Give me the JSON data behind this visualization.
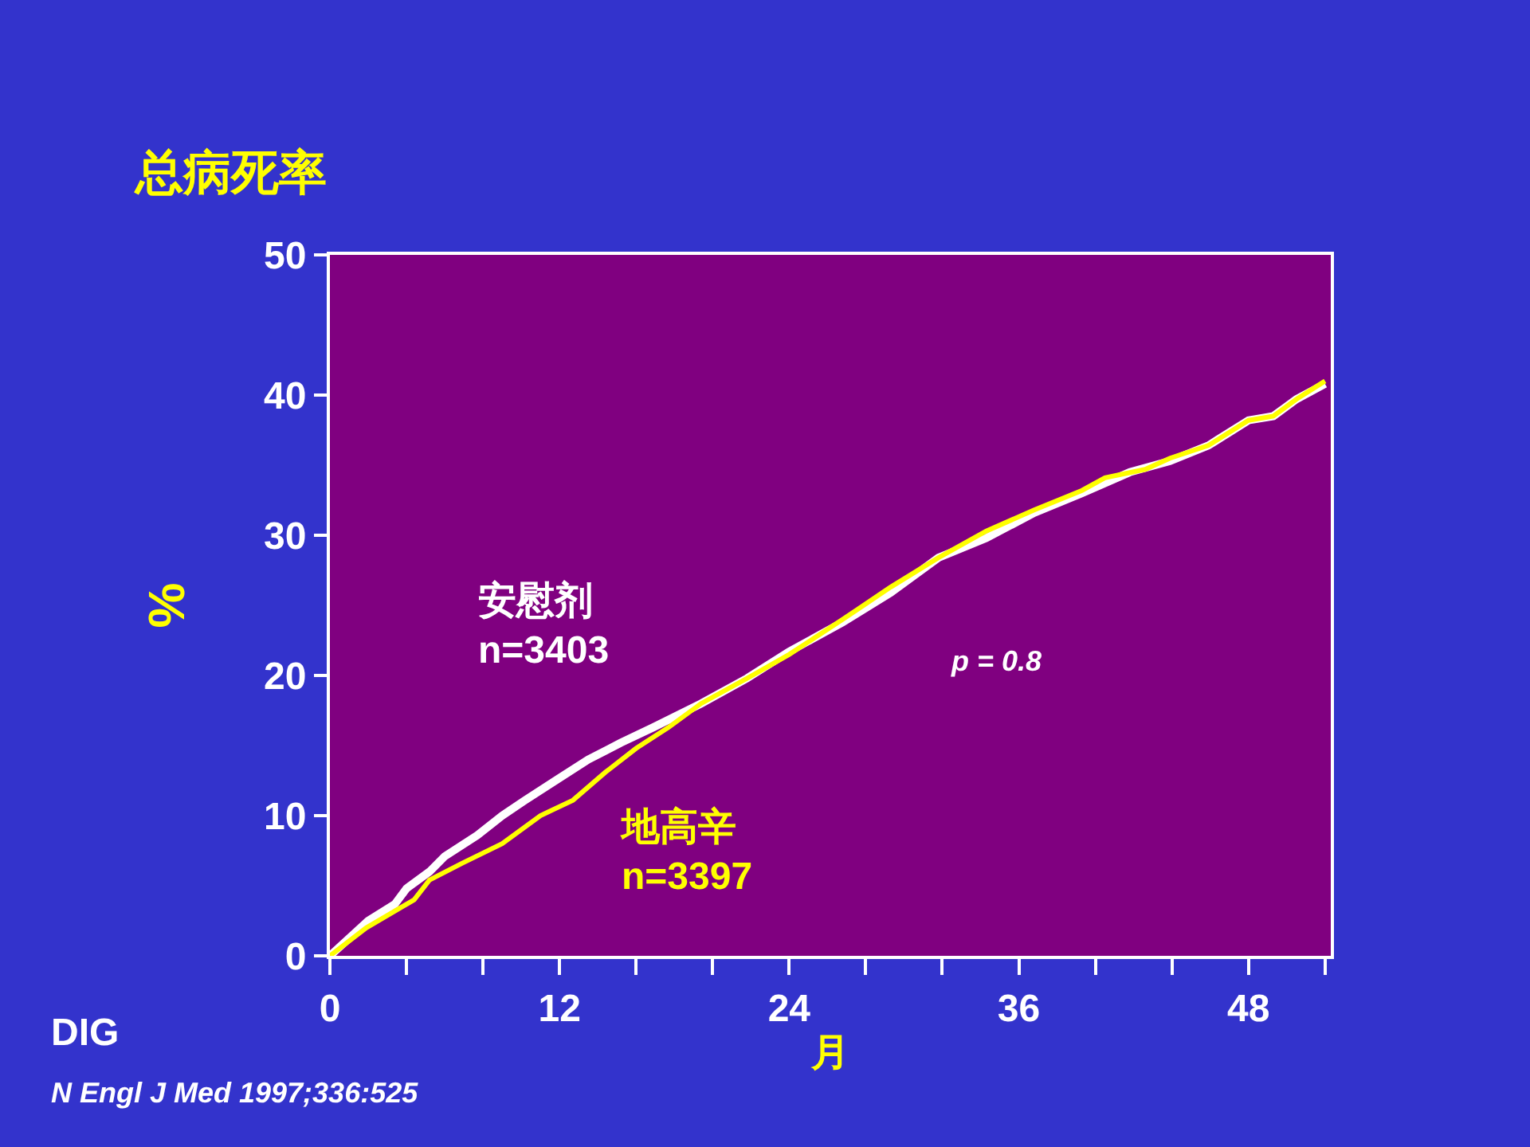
{
  "chart_data": {
    "type": "line",
    "title": "总病死率",
    "xlabel": "月",
    "ylabel": "%",
    "annotations": [
      "p = 0.8",
      "DIG",
      "N Engl J Med 1997;336:525"
    ],
    "xlim": [
      0,
      52.3
    ],
    "xticks": [
      0,
      {
        "value": 4,
        "label": null
      },
      {
        "value": 8,
        "label": null
      },
      12,
      {
        "value": 16,
        "label": null
      },
      {
        "value": 20,
        "label": null
      },
      24,
      {
        "value": 28,
        "label": null
      },
      {
        "value": 32,
        "label": null
      },
      36,
      {
        "value": 40,
        "label": null
      },
      {
        "value": 44,
        "label": null
      },
      48,
      {
        "value": 52,
        "label": null
      }
    ],
    "ylim": [
      0,
      50
    ],
    "yticks": [
      0,
      10,
      20,
      30,
      40,
      50
    ],
    "grid": false,
    "legend": false,
    "marker": "none",
    "line_style": "solid",
    "series": [
      {
        "name": "安慰剂\nn=3403",
        "color": "#ffffff",
        "x": [
          0,
          2,
          3.4,
          4,
          5.2,
          6,
          7.7,
          9,
          10.2,
          11.9,
          13.5,
          15.2,
          16.9,
          19.4,
          21.8,
          24,
          26.8,
          29.3,
          31.8,
          34.3,
          36.8,
          39.3,
          41.8,
          43.9,
          45.9,
          48,
          49.3,
          50.5,
          52
        ],
        "values": [
          0,
          2.5,
          3.7,
          4.8,
          6,
          7.1,
          8.6,
          10,
          11.1,
          12.6,
          14,
          15.2,
          16.3,
          18,
          19.8,
          21.7,
          23.8,
          25.9,
          28.4,
          29.8,
          31.6,
          33,
          34.5,
          35.3,
          36.4,
          38.2,
          38.5,
          39.7,
          40.8
        ]
      },
      {
        "name": "地高辛\nn=3397",
        "color": "#ffff00",
        "x": [
          0,
          1.9,
          4.4,
          5.2,
          6.9,
          9,
          11,
          12.7,
          14.4,
          16,
          17.7,
          19.4,
          21.8,
          24,
          26.8,
          29.3,
          31.8,
          34.3,
          36.8,
          39.3,
          40.5,
          42.6,
          43.9,
          45.9,
          48,
          49.3,
          50.5,
          52
        ],
        "values": [
          0,
          2,
          4,
          5.4,
          6.6,
          8,
          10,
          11.1,
          13.1,
          14.8,
          16.3,
          18,
          19.8,
          21.5,
          24,
          26.3,
          28.4,
          30.3,
          31.8,
          33.2,
          34.1,
          34.7,
          35.5,
          36.4,
          38.2,
          38.5,
          39.7,
          41
        ]
      }
    ]
  }
}
